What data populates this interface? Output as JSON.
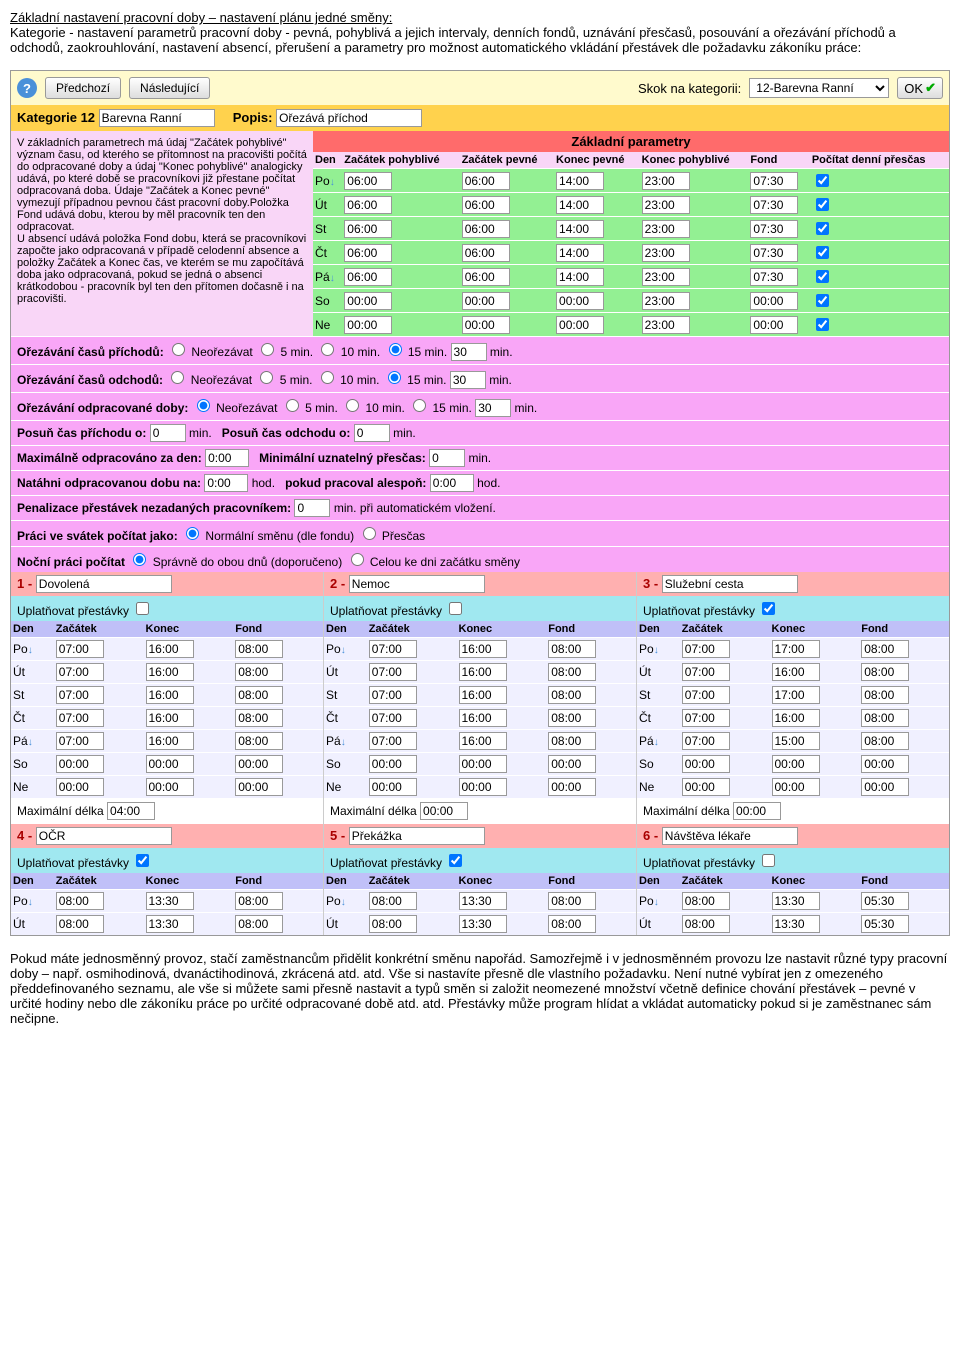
{
  "intro": {
    "title": "Základní nastavení pracovní doby – nastavení plánu jedné směny:",
    "text": "Kategorie - nastavení parametrů pracovní doby - pevná, pohyblivá a jejich intervaly, denních fondů, uznávání přesčasů, posouvání a ořezávání příchodů a odchodů, zaokrouhlování, nastavení absencí, přerušení a parametry pro možnost automatického vkládání přestávek dle požadavku zákoníku práce:"
  },
  "toolbar": {
    "prev": "Předchozí",
    "next": "Následující",
    "skok_label": "Skok na kategorii:",
    "skok_value": "12-Barevna Ranní",
    "ok": "OK"
  },
  "kat": {
    "label": "Kategorie 12",
    "name": "Barevna Ranní",
    "popis_label": "Popis:",
    "popis": "Ořezává příchod"
  },
  "leftdesc": "V základních parametrech má údaj \"Začátek pohyblivé\" význam času, od kterého se přítomnost na pracovišti počítá do odpracované doby a údaj \"Konec pohyblivé\" analogicky udává, po které době se pracovníkovi již přestane počítat odpracovaná doba. Údaje \"Začátek a Konec pevné\" vymezují případnou pevnou část pracovní doby.Položka Fond udává dobu, kterou by měl pracovník ten den odpracovat.\nU absencí udává položka Fond dobu, která se pracovníkovi započte jako odpracovaná v případě celodenní absence a položky Začátek a Konec čas, ve kterém se mu započítává doba jako odpracovaná, pokud se jedná o absenci krátkodobou - pracovník byl ten den přítomen dočasně i na pracovišti.",
  "params": {
    "header": "Základní parametry",
    "cols": [
      "Den",
      "Začátek pohyblivé",
      "Začátek pevné",
      "Konec pevné",
      "Konec pohyblivé",
      "Fond",
      "Počítat denní přesčas"
    ],
    "rows": [
      {
        "day": "Po",
        "arrow": true,
        "v": [
          "06:00",
          "06:00",
          "14:00",
          "23:00",
          "07:30"
        ],
        "chk": true
      },
      {
        "day": "Út",
        "arrow": false,
        "v": [
          "06:00",
          "06:00",
          "14:00",
          "23:00",
          "07:30"
        ],
        "chk": true
      },
      {
        "day": "St",
        "arrow": false,
        "v": [
          "06:00",
          "06:00",
          "14:00",
          "23:00",
          "07:30"
        ],
        "chk": true
      },
      {
        "day": "Čt",
        "arrow": false,
        "v": [
          "06:00",
          "06:00",
          "14:00",
          "23:00",
          "07:30"
        ],
        "chk": true
      },
      {
        "day": "Pá",
        "arrow": true,
        "v": [
          "06:00",
          "06:00",
          "14:00",
          "23:00",
          "07:30"
        ],
        "chk": true
      },
      {
        "day": "So",
        "arrow": false,
        "v": [
          "00:00",
          "00:00",
          "00:00",
          "23:00",
          "00:00"
        ],
        "chk": true
      },
      {
        "day": "Ne",
        "arrow": false,
        "v": [
          "00:00",
          "00:00",
          "00:00",
          "23:00",
          "00:00"
        ],
        "chk": true
      }
    ]
  },
  "orez": {
    "prichodu_label": "Ořezávání časů příchodů:",
    "odchodu_label": "Ořezávání časů odchodů:",
    "doby_label": "Ořezávání odpracované doby:",
    "opts": [
      "Neořezávat",
      "5 min.",
      "10 min.",
      "15 min."
    ],
    "minbox": "30",
    "minlabel": "min.",
    "sel_prichodu": 3,
    "sel_odchodu": 3,
    "sel_doby": 0
  },
  "posun": {
    "l1": "Posuň čas příchodu o:",
    "v1": "0",
    "m": "min.",
    "l2": "Posuň čas odchodu o:",
    "v2": "0"
  },
  "maxodp": {
    "l1": "Maximálně odpracováno za den:",
    "v1": "0:00",
    "l2": "Minimální uznatelný přesčas:",
    "v2": "0",
    "m": "min."
  },
  "natahni": {
    "l1": "Natáhni odpracovanou dobu na:",
    "v1": "0:00",
    "h": "hod.",
    "l2": "pokud pracoval alespoň:",
    "v2": "0:00"
  },
  "penal": {
    "l": "Penalizace přestávek nezadaných pracovníkem:",
    "v": "0",
    "m": "min. při automatickém vložení."
  },
  "svatek": {
    "l": "Práci ve svátek počítat jako:",
    "o1": "Normální směnu (dle fondu)",
    "o2": "Přesčas",
    "sel": 0
  },
  "nocni": {
    "l": "Noční práci počítat",
    "o1": "Správně do obou dnů (doporučeno)",
    "o2": "Celou ke dni začátku směny",
    "sel": 0
  },
  "abs": [
    {
      "num": "1 -",
      "name": "Dovolená",
      "upl": "Uplatňovat přestávky",
      "chk": false,
      "rows": [
        [
          "Po",
          true,
          "07:00",
          "16:00",
          "08:00"
        ],
        [
          "Út",
          false,
          "07:00",
          "16:00",
          "08:00"
        ],
        [
          "St",
          false,
          "07:00",
          "16:00",
          "08:00"
        ],
        [
          "Čt",
          false,
          "07:00",
          "16:00",
          "08:00"
        ],
        [
          "Pá",
          true,
          "07:00",
          "16:00",
          "08:00"
        ],
        [
          "So",
          false,
          "00:00",
          "00:00",
          "00:00"
        ],
        [
          "Ne",
          false,
          "00:00",
          "00:00",
          "00:00"
        ]
      ],
      "maxlabel": "Maximální délka",
      "max": "04:00"
    },
    {
      "num": "2 -",
      "name": "Nemoc",
      "upl": "Uplatňovat přestávky",
      "chk": false,
      "rows": [
        [
          "Po",
          true,
          "07:00",
          "16:00",
          "08:00"
        ],
        [
          "Út",
          false,
          "07:00",
          "16:00",
          "08:00"
        ],
        [
          "St",
          false,
          "07:00",
          "16:00",
          "08:00"
        ],
        [
          "Čt",
          false,
          "07:00",
          "16:00",
          "08:00"
        ],
        [
          "Pá",
          true,
          "07:00",
          "16:00",
          "08:00"
        ],
        [
          "So",
          false,
          "00:00",
          "00:00",
          "00:00"
        ],
        [
          "Ne",
          false,
          "00:00",
          "00:00",
          "00:00"
        ]
      ],
      "maxlabel": "Maximální délka",
      "max": "00:00"
    },
    {
      "num": "3 -",
      "name": "Služební cesta",
      "upl": "Uplatňovat přestávky",
      "chk": true,
      "rows": [
        [
          "Po",
          true,
          "07:00",
          "17:00",
          "08:00"
        ],
        [
          "Út",
          false,
          "07:00",
          "16:00",
          "08:00"
        ],
        [
          "St",
          false,
          "07:00",
          "17:00",
          "08:00"
        ],
        [
          "Čt",
          false,
          "07:00",
          "16:00",
          "08:00"
        ],
        [
          "Pá",
          true,
          "07:00",
          "15:00",
          "08:00"
        ],
        [
          "So",
          false,
          "00:00",
          "00:00",
          "00:00"
        ],
        [
          "Ne",
          false,
          "00:00",
          "00:00",
          "00:00"
        ]
      ],
      "maxlabel": "Maximální délka",
      "max": "00:00"
    },
    {
      "num": "4 -",
      "name": "OČR",
      "upl": "Uplatňovat přestávky",
      "chk": true,
      "rows": [
        [
          "Po",
          true,
          "08:00",
          "13:30",
          "08:00"
        ],
        [
          "Út",
          false,
          "08:00",
          "13:30",
          "08:00"
        ]
      ],
      "maxlabel": "",
      "max": ""
    },
    {
      "num": "5 -",
      "name": "Překážka",
      "upl": "Uplatňovat přestávky",
      "chk": true,
      "rows": [
        [
          "Po",
          true,
          "08:00",
          "13:30",
          "08:00"
        ],
        [
          "Út",
          false,
          "08:00",
          "13:30",
          "08:00"
        ]
      ],
      "maxlabel": "",
      "max": ""
    },
    {
      "num": "6 -",
      "name": "Návštěva lékaře",
      "upl": "Uplatňovat přestávky",
      "chk": false,
      "rows": [
        [
          "Po",
          true,
          "08:00",
          "13:30",
          "05:30"
        ],
        [
          "Út",
          false,
          "08:00",
          "13:30",
          "05:30"
        ]
      ],
      "maxlabel": "",
      "max": ""
    }
  ],
  "abscols": [
    "Den",
    "Začátek",
    "Konec",
    "Fond"
  ],
  "outro": "Pokud máte jednosměnný provoz, stačí zaměstnancům přidělit konkrétní směnu napořád. Samozřejmě i v jednosměnném provozu lze nastavit různé typy pracovní doby – např. osmihodinová, dvanáctihodinová, zkrácená atd. atd. Vše si nastavíte přesně dle vlastního požadavku. Není nutné vybírat jen z omezeného předdefinovaného seznamu, ale vše si můžete sami přesně nastavit a typů směn si založit neomezené množství včetně definice chování přestávek – pevné v určité hodiny nebo dle zákoníku práce po určité odpracované době atd. atd. Přestávky může program hlídat a vkládat automaticky pokud si je zaměstnanec sám nečipne."
}
